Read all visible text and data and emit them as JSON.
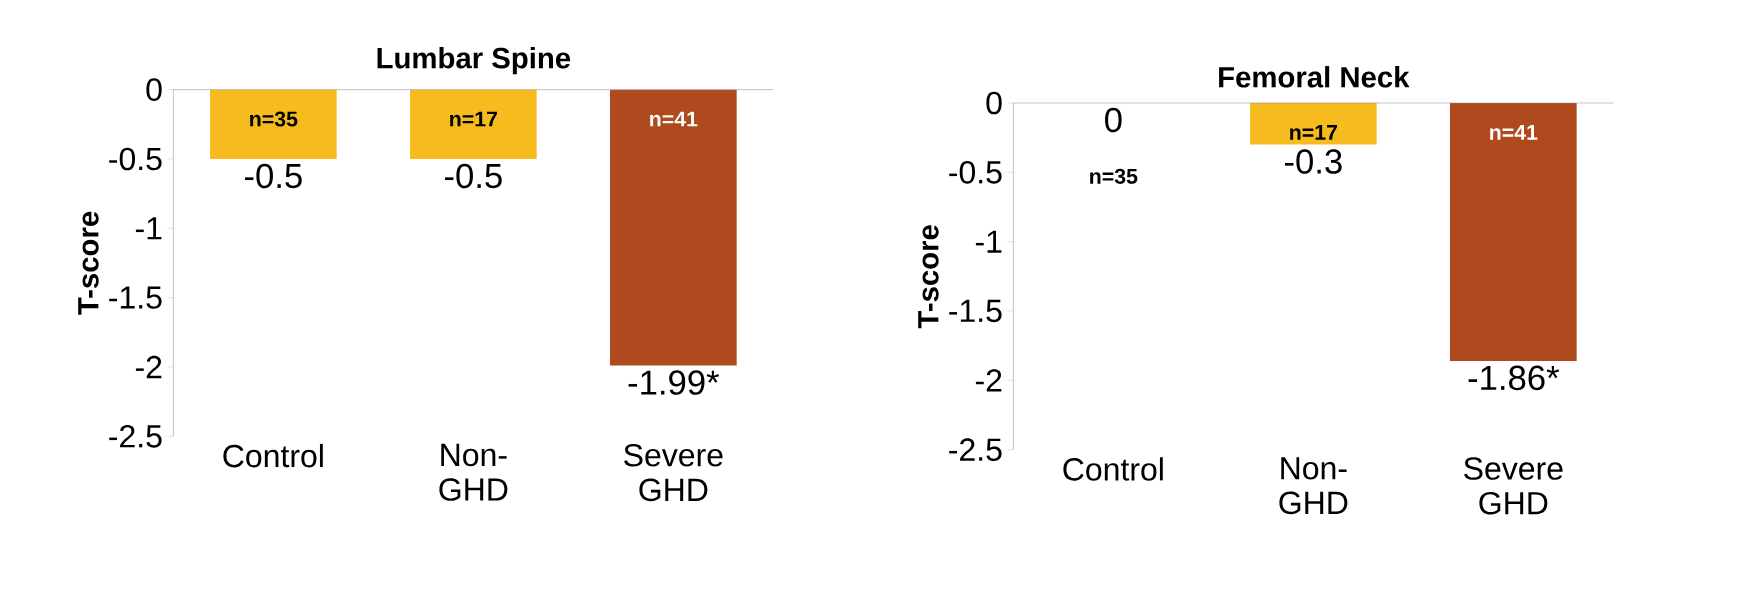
{
  "chart_data": [
    {
      "type": "bar",
      "title": "Lumbar Spine",
      "ylabel": "T-score",
      "categories": [
        "Control",
        "Non-GHD",
        "Severe GHD"
      ],
      "values": [
        -0.5,
        -0.5,
        -1.99
      ],
      "colors": [
        "#f5bb1f",
        "#f5bb1f",
        "#ae4a1d"
      ],
      "value_labels": [
        "-0.5",
        "-0.5",
        "-1.99*"
      ],
      "ylim": [
        -2.5,
        0
      ],
      "yticks": [
        0,
        -0.5,
        -1,
        -1.5,
        -2,
        -2.5
      ],
      "annotations": [
        "n=35",
        "n=17",
        "n=41"
      ]
    },
    {
      "type": "bar",
      "title": "Femoral Neck",
      "ylabel": "T-score",
      "categories": [
        "Control",
        "Non-GHD",
        "Severe GHD"
      ],
      "values": [
        0,
        -0.3,
        -1.86
      ],
      "colors": [
        "#f5bb1f",
        "#f5bb1f",
        "#ae4a1d"
      ],
      "value_labels": [
        "0",
        "-0.3",
        "-1.86*"
      ],
      "ylim": [
        -2.5,
        0
      ],
      "yticks": [
        0,
        -0.5,
        -1,
        -1.5,
        -2,
        -2.5
      ],
      "annotations": [
        "n=35",
        "n=17",
        "n=41"
      ]
    }
  ]
}
